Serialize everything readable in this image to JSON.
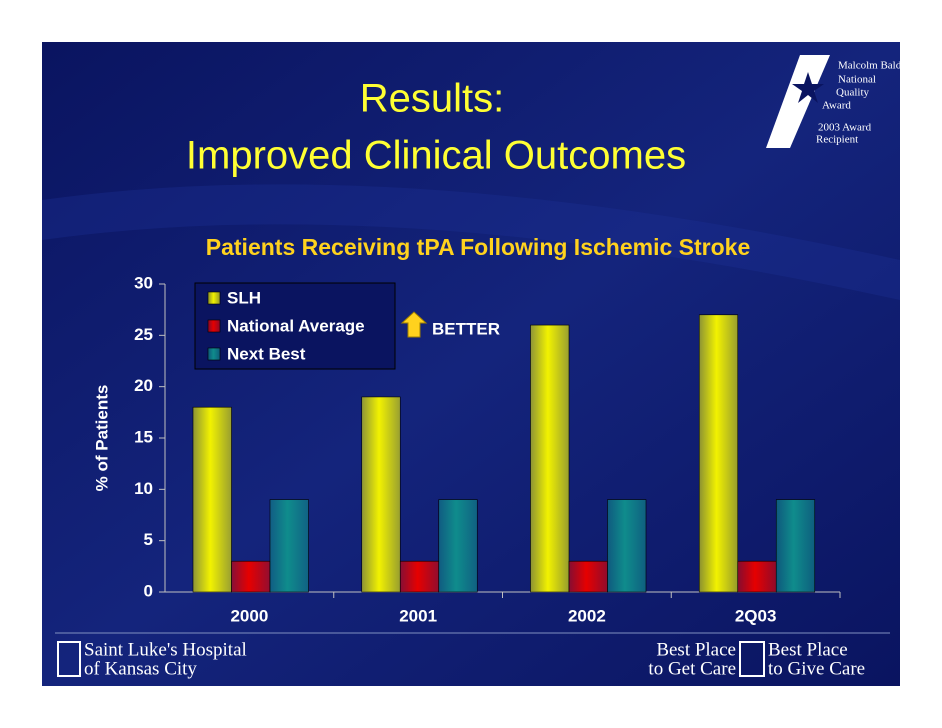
{
  "slide": {
    "title": [
      "Results:",
      "Improved Clinical Outcomes"
    ],
    "award": [
      "Malcolm Baldrige",
      "National",
      "Quality",
      "Award",
      "2003 Award",
      "Recipient"
    ],
    "footer_left": [
      "Saint Luke's Hospital",
      "of Kansas City"
    ],
    "footer_right": [
      "Best Place",
      "to Get Care",
      "Best Place",
      "to Give Care"
    ]
  },
  "chart_data": {
    "type": "bar",
    "title": "Patients Receiving tPA Following Ischemic Stroke",
    "y_label": "% of Patients",
    "categories": [
      "2000",
      "2001",
      "2002",
      "2Q03"
    ],
    "series": [
      {
        "name": "SLH",
        "color": "#f2f200",
        "values": [
          18,
          19,
          26,
          27
        ]
      },
      {
        "name": "National Average",
        "color": "#e60000",
        "values": [
          3,
          3,
          3,
          3
        ]
      },
      {
        "name": "Next Best",
        "color": "#0f8c8c",
        "values": [
          9,
          9,
          9,
          9
        ]
      }
    ],
    "ylim": [
      0,
      30
    ],
    "yticks": [
      0,
      5,
      10,
      15,
      20,
      25,
      30
    ],
    "legend": "top-left",
    "annotation": "BETTER"
  }
}
